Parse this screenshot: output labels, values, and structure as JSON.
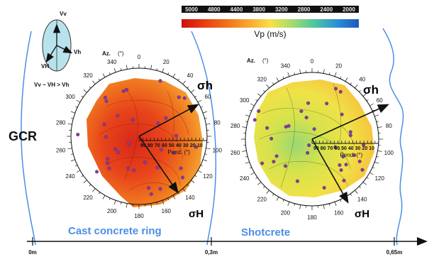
{
  "colorbar": {
    "tick_labels": [
      "5000",
      "4800",
      "4400",
      "3800",
      "3200",
      "2800",
      "2400",
      "2000"
    ],
    "title": "Vp (m/s)",
    "colors": [
      "#cc1010",
      "#e83a10",
      "#f0701a",
      "#f8a832",
      "#f8e048",
      "#a8dc6a",
      "#4cc6a0",
      "#2a8ed8",
      "#1a5ab8"
    ]
  },
  "legend": {
    "labels": {
      "vv": "Vv",
      "vh": "Vh",
      "vH": "VH"
    },
    "relation": "Vv ~ VH > Vh"
  },
  "side_label": "GCR",
  "zones": {
    "cast": "Cast concrete ring",
    "shotcrete": "Shotcrete"
  },
  "distance_axis": [
    "0m",
    "0,3m",
    "0,65m"
  ],
  "stereonet": {
    "az_label": "Az.",
    "az_unit": "(°)",
    "pend_label": "Pend. (°)",
    "ring_ticks": [
      "0",
      "20",
      "40",
      "60",
      "80",
      "100",
      "120",
      "140",
      "160",
      "180",
      "200",
      "220",
      "240",
      "260",
      "280",
      "300",
      "320",
      "340"
    ],
    "pend_ticks": [
      "90",
      "80",
      "70",
      "60",
      "50",
      "40",
      "30",
      "20",
      "10"
    ]
  },
  "stress": {
    "sigma_h": "σh",
    "sigma_H": "σH"
  },
  "plots": [
    {
      "name": "cast-concrete-stereonet",
      "dominant": [
        "#e63814",
        "#ee5a18",
        "#f07a1e",
        "#f5a030"
      ]
    },
    {
      "name": "shotcrete-stereonet",
      "dominant": [
        "#f4e04a",
        "#d8e04c",
        "#a6d86a",
        "#7ccf86"
      ]
    }
  ]
}
